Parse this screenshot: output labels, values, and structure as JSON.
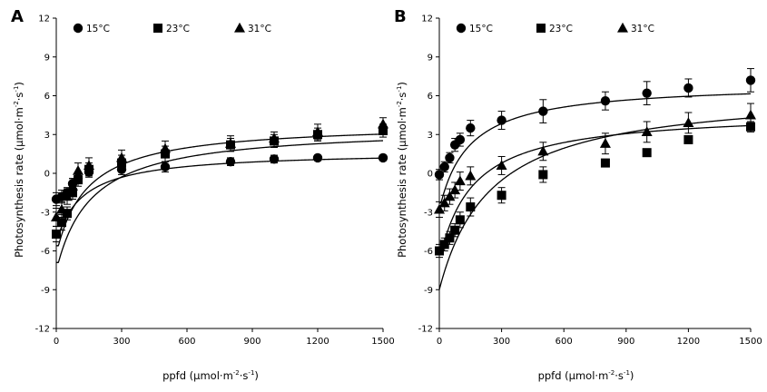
{
  "chart_data": [
    {
      "type": "scatter",
      "panel_label": "A",
      "title": "",
      "xlabel_main": "ppfd (µmol·m",
      "xlabel_sup1": "-2",
      "xlabel_mid": "·s",
      "xlabel_sup2": "-1",
      "xlabel_end": ")",
      "ylabel_main": "Photosynthesis rate (µmol·m",
      "ylabel_sup1": "-2",
      "ylabel_mid": "·s",
      "ylabel_sup2": "-1",
      "ylabel_end": ")",
      "xlim": [
        0,
        1500
      ],
      "ylim": [
        -12,
        12
      ],
      "xticks": [
        "0",
        "300",
        "600",
        "900",
        "1200",
        "1500"
      ],
      "yticks": [
        "-12",
        "-9",
        "-6",
        "-3",
        "0",
        "3",
        "6",
        "9",
        "12"
      ],
      "legend_position": "top",
      "series": [
        {
          "name": "15°C",
          "marker": "circle",
          "x": [
            0,
            25,
            50,
            75,
            100,
            150,
            300,
            500,
            800,
            1000,
            1200,
            1500
          ],
          "y": [
            -2.0,
            -1.8,
            -1.5,
            -0.8,
            -0.4,
            0.1,
            0.3,
            0.5,
            0.9,
            1.1,
            1.2,
            1.2
          ],
          "err": [
            0.5,
            0.5,
            0.4,
            0.4,
            0.4,
            0.4,
            0.4,
            0.4,
            0.3,
            0.3,
            0.2,
            0.2
          ],
          "fit": {
            "pmax": 1.7,
            "rd": 4.8,
            "k": 130,
            "x0": 10
          }
        },
        {
          "name": "23°C",
          "marker": "square",
          "x": [
            0,
            25,
            50,
            75,
            100,
            150,
            300,
            500,
            800,
            1000,
            1200,
            1500
          ],
          "y": [
            -4.7,
            -3.8,
            -3.1,
            -1.5,
            -0.5,
            0.3,
            0.8,
            1.5,
            2.2,
            2.5,
            3.0,
            3.3
          ],
          "err": [
            0.6,
            0.6,
            0.5,
            0.5,
            0.5,
            0.5,
            0.6,
            0.6,
            0.5,
            0.5,
            0.5,
            0.5
          ],
          "fit": {
            "pmax": 3.6,
            "rd": 6.9,
            "k": 170,
            "x0": 10
          }
        },
        {
          "name": "31°C",
          "marker": "triangle",
          "x": [
            0,
            25,
            50,
            75,
            100,
            150,
            300,
            500,
            800,
            1000,
            1200,
            1500
          ],
          "y": [
            -3.4,
            -2.8,
            -1.8,
            -1.0,
            0.2,
            0.6,
            1.2,
            1.9,
            2.3,
            2.7,
            3.2,
            3.8
          ],
          "err": [
            0.7,
            0.6,
            0.6,
            0.6,
            0.6,
            0.6,
            0.6,
            0.6,
            0.6,
            0.5,
            0.6,
            0.5
          ],
          "fit": {
            "pmax": 3.9,
            "rd": 5.6,
            "k": 150,
            "x0": 10
          }
        }
      ]
    },
    {
      "type": "scatter",
      "panel_label": "B",
      "title": "",
      "xlabel_main": "ppfd (µmol·m",
      "xlabel_sup1": "-2",
      "xlabel_mid": "·s",
      "xlabel_sup2": "-1",
      "xlabel_end": ")",
      "ylabel_main": "Photosynthesis rate (µmol·m",
      "ylabel_sup1": "-2",
      "ylabel_mid": "·s",
      "ylabel_sup2": "-1",
      "ylabel_end": ")",
      "xlim": [
        0,
        1500
      ],
      "ylim": [
        -12,
        12
      ],
      "xticks": [
        "0",
        "300",
        "600",
        "900",
        "1200",
        "1500"
      ],
      "yticks": [
        "-12",
        "-9",
        "-6",
        "-3",
        "0",
        "3",
        "6",
        "9",
        "12"
      ],
      "legend_position": "top",
      "series": [
        {
          "name": "15°C",
          "marker": "circle",
          "x": [
            0,
            25,
            50,
            75,
            100,
            150,
            300,
            500,
            800,
            1000,
            1200,
            1500
          ],
          "y": [
            -0.1,
            0.5,
            1.2,
            2.2,
            2.6,
            3.5,
            4.1,
            4.8,
            5.6,
            6.2,
            6.6,
            7.2
          ],
          "err": [
            0.4,
            0.4,
            0.4,
            0.5,
            0.5,
            0.6,
            0.7,
            0.9,
            0.7,
            0.9,
            0.7,
            0.9
          ],
          "fit": {
            "pmax": 7.0,
            "rd": 2.3,
            "k": 150,
            "x0": 8
          }
        },
        {
          "name": "23°C",
          "marker": "square",
          "x": [
            0,
            25,
            50,
            75,
            100,
            150,
            300,
            500,
            800,
            1000,
            1200,
            1500
          ],
          "y": [
            -6.0,
            -5.5,
            -5.0,
            -4.4,
            -3.6,
            -2.6,
            -1.7,
            -0.1,
            0.8,
            1.6,
            2.6,
            3.6
          ],
          "err": [
            0.5,
            0.5,
            0.5,
            0.5,
            0.6,
            0.7,
            0.6,
            0.6,
            0.2,
            0.2,
            0.3,
            0.4
          ],
          "fit": {
            "pmax": 6.5,
            "rd": 9.0,
            "k": 250,
            "x0": 0
          }
        },
        {
          "name": "31°C",
          "marker": "triangle",
          "x": [
            0,
            25,
            50,
            75,
            100,
            150,
            300,
            500,
            800,
            1000,
            1200,
            1500
          ],
          "y": [
            -2.8,
            -2.3,
            -1.8,
            -1.3,
            -0.6,
            -0.2,
            0.6,
            1.7,
            2.3,
            3.2,
            3.9,
            4.5
          ],
          "err": [
            0.6,
            0.6,
            0.6,
            0.6,
            0.7,
            0.7,
            0.7,
            0.7,
            0.8,
            0.8,
            0.8,
            0.9
          ],
          "fit": {
            "pmax": 4.8,
            "rd": 6.0,
            "k": 170,
            "x0": 12
          }
        }
      ]
    }
  ]
}
